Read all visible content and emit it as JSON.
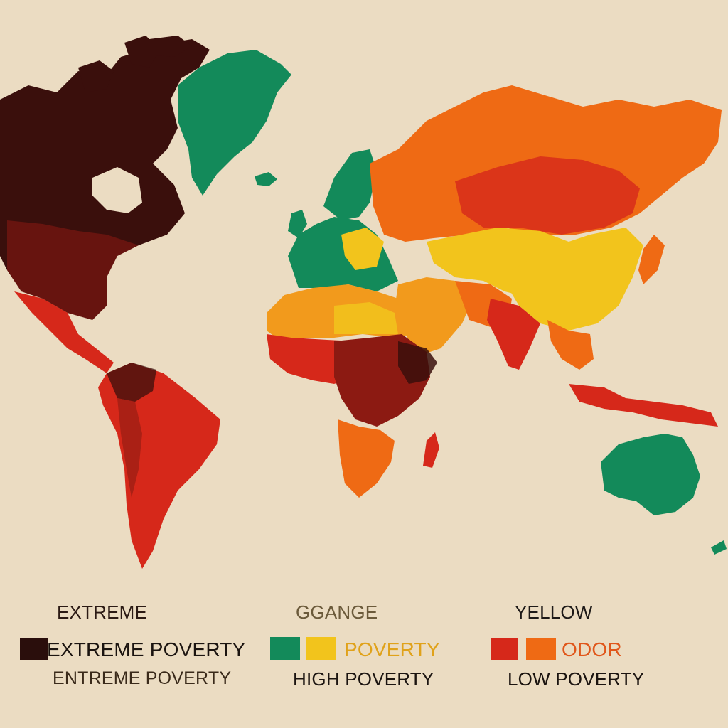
{
  "colors": {
    "background": "#ebdcc2",
    "extreme": "#3a0f0c",
    "very_high": "#8c1a12",
    "high": "#d6281a",
    "orange": "#ef6a14",
    "amber": "#f29a1c",
    "yellow": "#f2c41c",
    "green": "#138a5a"
  },
  "legend": {
    "headers": [
      "EXTREME",
      "GGANGE",
      "YELLOW"
    ],
    "rows": [
      "EXTREME POVERTY",
      "POVERTY",
      "ODOR"
    ],
    "subtitles": [
      "ENTREME POVERTY",
      "HIGH POVERTY",
      "LOW POVERTY"
    ],
    "swatches": [
      {
        "color": "#2a0e0c",
        "name": "dark-swatch"
      },
      {
        "color": "#138a5a",
        "name": "green-swatch"
      },
      {
        "color": "#f2c41c",
        "name": "yellow-swatch"
      },
      {
        "color": "#d6281a",
        "name": "red-swatch"
      },
      {
        "color": "#ef6a14",
        "name": "orange-swatch"
      }
    ]
  }
}
